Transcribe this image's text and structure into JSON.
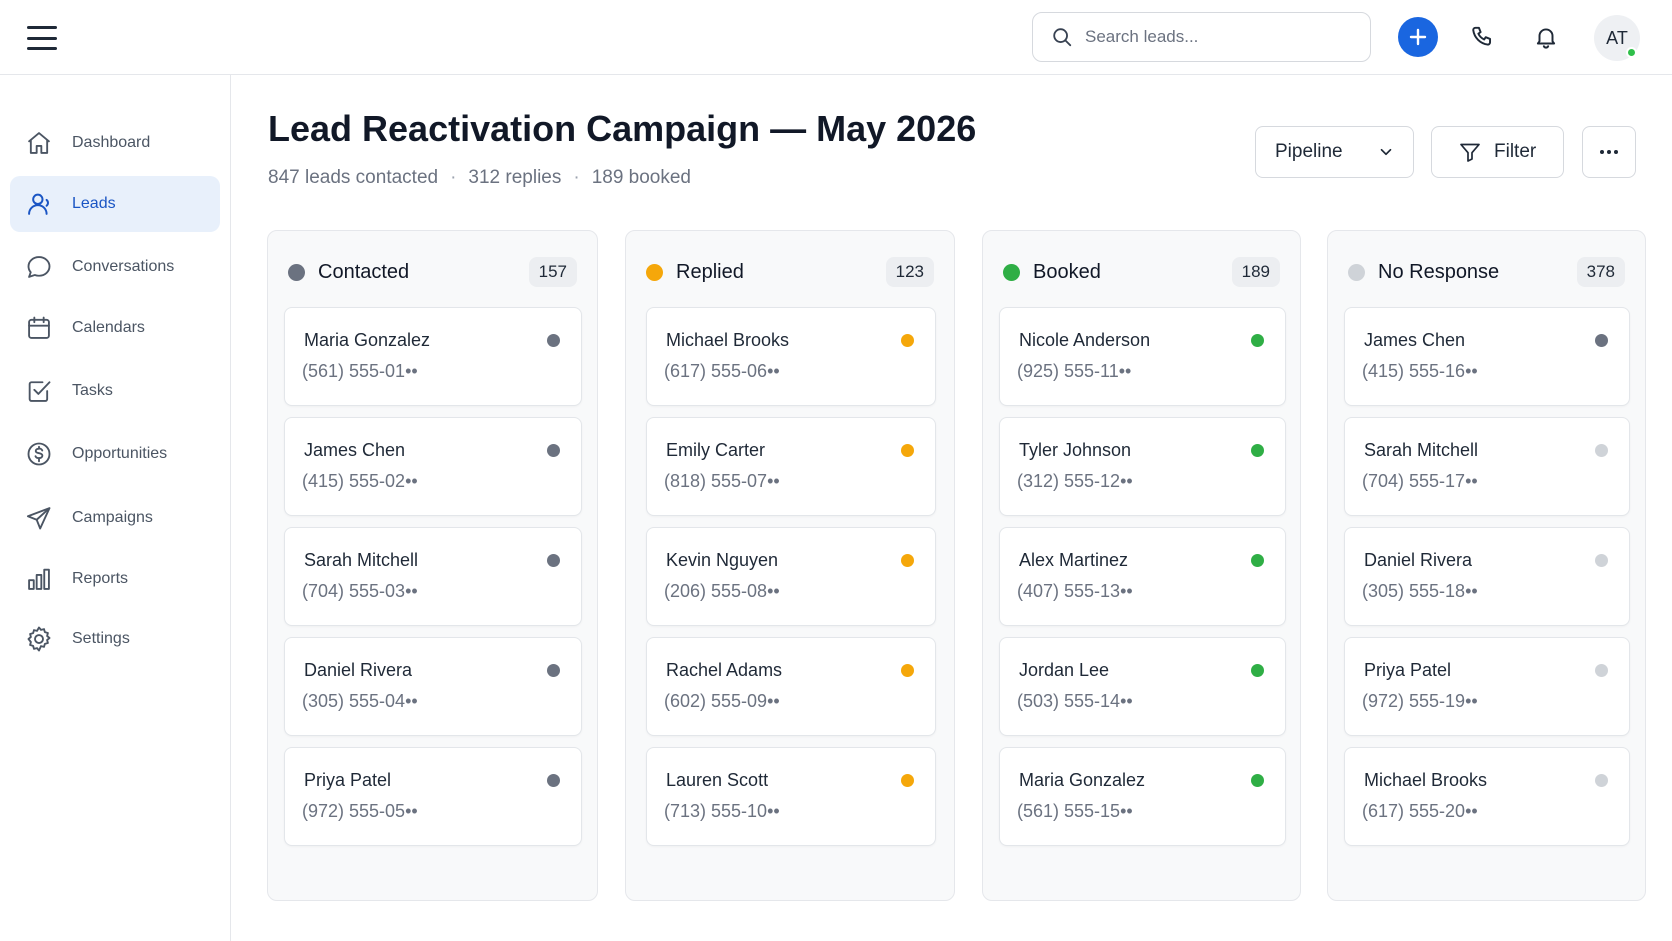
{
  "header": {
    "search_placeholder": "Search leads...",
    "avatar_initials": "AT",
    "brand_color": "#1a66e0"
  },
  "sidebar": {
    "items": [
      {
        "label": "Dashboard",
        "icon": "home-icon"
      },
      {
        "label": "Leads",
        "icon": "user-icon",
        "active": true
      },
      {
        "label": "Conversations",
        "icon": "chat-bubble-icon"
      },
      {
        "label": "Calendars",
        "icon": "calendar-icon"
      },
      {
        "label": "Tasks",
        "icon": "checkbox-icon"
      },
      {
        "label": "Opportunities",
        "icon": "dollar-circle-icon"
      },
      {
        "label": "Campaigns",
        "icon": "paper-plane-icon"
      },
      {
        "label": "Reports",
        "icon": "bar-chart-icon"
      },
      {
        "label": "Settings",
        "icon": "gear-icon"
      }
    ]
  },
  "page": {
    "title": "Lead Reactivation Campaign — May 2026",
    "stats": [
      "847 leads contacted",
      "312 replies",
      "189 booked"
    ],
    "view_select": "Pipeline",
    "filter_label": "Filter"
  },
  "columns": [
    {
      "title": "Contacted",
      "count": "157",
      "color": "#6b7280",
      "cards": [
        {
          "name": "Maria Gonzalez",
          "phone": "(561) 555-01••"
        },
        {
          "name": "James Chen",
          "phone": "(415) 555-02••"
        },
        {
          "name": "Sarah Mitchell",
          "phone": "(704) 555-03••"
        },
        {
          "name": "Daniel Rivera",
          "phone": "(305) 555-04••"
        },
        {
          "name": "Priya Patel",
          "phone": "(972) 555-05••"
        }
      ]
    },
    {
      "title": "Replied",
      "count": "123",
      "color": "#f5a70a",
      "cards": [
        {
          "name": "Michael Brooks",
          "phone": "(617) 555-06••"
        },
        {
          "name": "Emily Carter",
          "phone": "(818) 555-07••"
        },
        {
          "name": "Kevin Nguyen",
          "phone": "(206) 555-08••"
        },
        {
          "name": "Rachel Adams",
          "phone": "(602) 555-09••"
        },
        {
          "name": "Lauren Scott",
          "phone": "(713) 555-10••"
        }
      ]
    },
    {
      "title": "Booked",
      "count": "189",
      "color": "#2fae45",
      "cards": [
        {
          "name": "Nicole Anderson",
          "phone": "(925) 555-11••"
        },
        {
          "name": "Tyler Johnson",
          "phone": "(312) 555-12••"
        },
        {
          "name": "Alex Martinez",
          "phone": "(407) 555-13••"
        },
        {
          "name": "Jordan Lee",
          "phone": "(503) 555-14••"
        },
        {
          "name": "Maria Gonzalez",
          "phone": "(561) 555-15••"
        }
      ]
    },
    {
      "title": "No Response",
      "count": "378",
      "color": "#cfd3d8",
      "cards": [
        {
          "name": "James Chen",
          "phone": "(415) 555-16••",
          "dot_color": "#6b7280"
        },
        {
          "name": "Sarah Mitchell",
          "phone": "(704) 555-17••"
        },
        {
          "name": "Daniel Rivera",
          "phone": "(305) 555-18••"
        },
        {
          "name": "Priya Patel",
          "phone": "(972) 555-19••"
        },
        {
          "name": "Michael Brooks",
          "phone": "(617) 555-20••"
        }
      ]
    }
  ]
}
